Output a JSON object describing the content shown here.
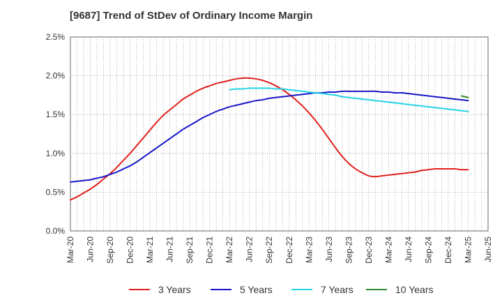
{
  "chart": {
    "title": "[9687]  Trend of StDev of Ordinary Income Margin"
  },
  "chart_data": {
    "type": "line",
    "title": "[9687]  Trend of StDev of Ordinary Income Margin",
    "xlabel": "",
    "ylabel": "",
    "x_ticks": [
      "Mar-20",
      "Jun-20",
      "Sep-20",
      "Dec-20",
      "Mar-21",
      "Jun-21",
      "Sep-21",
      "Dec-21",
      "Mar-22",
      "Jun-22",
      "Sep-22",
      "Dec-22",
      "Mar-23",
      "Jun-23",
      "Sep-23",
      "Dec-23",
      "Mar-24",
      "Jun-24",
      "Sep-24",
      "Dec-24",
      "Mar-25",
      "Jun-25"
    ],
    "y_ticks": [
      "0.0%",
      "0.5%",
      "1.0%",
      "1.5%",
      "2.0%",
      "2.5%"
    ],
    "ylim": [
      0,
      2.5
    ],
    "y_unit": "%",
    "grid": true,
    "legend_position": "bottom",
    "series": [
      {
        "name": "3 Years",
        "color": "#e0201c",
        "x": [
          "Mar-20",
          "Apr-20",
          "May-20",
          "Jun-20",
          "Jul-20",
          "Aug-20",
          "Sep-20",
          "Oct-20",
          "Nov-20",
          "Dec-20",
          "Jan-21",
          "Feb-21",
          "Mar-21",
          "Apr-21",
          "May-21",
          "Jun-21",
          "Jul-21",
          "Aug-21",
          "Sep-21",
          "Oct-21",
          "Nov-21",
          "Dec-21",
          "Jan-22",
          "Feb-22",
          "Mar-22",
          "Apr-22",
          "May-22",
          "Jun-22",
          "Jul-22",
          "Aug-22",
          "Sep-22",
          "Oct-22",
          "Nov-22",
          "Dec-22",
          "Jan-23",
          "Feb-23",
          "Mar-23",
          "Apr-23",
          "May-23",
          "Jun-23",
          "Jul-23",
          "Aug-23",
          "Sep-23",
          "Oct-23",
          "Nov-23",
          "Dec-23",
          "Jan-24",
          "Feb-24",
          "Mar-24",
          "Apr-24",
          "May-24",
          "Jun-24",
          "Jul-24",
          "Aug-24",
          "Sep-24",
          "Oct-24",
          "Nov-24",
          "Dec-24",
          "Jan-25",
          "Feb-25",
          "Mar-25"
        ],
        "values": [
          0.4,
          0.44,
          0.49,
          0.54,
          0.6,
          0.67,
          0.74,
          0.82,
          0.91,
          1.0,
          1.1,
          1.2,
          1.3,
          1.4,
          1.49,
          1.56,
          1.63,
          1.7,
          1.75,
          1.8,
          1.84,
          1.87,
          1.9,
          1.92,
          1.94,
          1.96,
          1.97,
          1.97,
          1.96,
          1.94,
          1.91,
          1.87,
          1.82,
          1.76,
          1.69,
          1.61,
          1.52,
          1.42,
          1.31,
          1.19,
          1.07,
          0.96,
          0.87,
          0.8,
          0.75,
          0.71,
          0.7,
          0.71,
          0.72,
          0.73,
          0.74,
          0.75,
          0.76,
          0.78,
          0.79,
          0.8,
          0.8,
          0.8,
          0.8,
          0.79,
          0.79
        ]
      },
      {
        "name": "5 Years",
        "color": "#1515c8",
        "x": [
          "Mar-20",
          "Apr-20",
          "May-20",
          "Jun-20",
          "Jul-20",
          "Aug-20",
          "Sep-20",
          "Oct-20",
          "Nov-20",
          "Dec-20",
          "Jan-21",
          "Feb-21",
          "Mar-21",
          "Apr-21",
          "May-21",
          "Jun-21",
          "Jul-21",
          "Aug-21",
          "Sep-21",
          "Oct-21",
          "Nov-21",
          "Dec-21",
          "Jan-22",
          "Feb-22",
          "Mar-22",
          "Apr-22",
          "May-22",
          "Jun-22",
          "Jul-22",
          "Aug-22",
          "Sep-22",
          "Oct-22",
          "Nov-22",
          "Dec-22",
          "Jan-23",
          "Feb-23",
          "Mar-23",
          "Apr-23",
          "May-23",
          "Jun-23",
          "Jul-23",
          "Aug-23",
          "Sep-23",
          "Oct-23",
          "Nov-23",
          "Dec-23",
          "Jan-24",
          "Feb-24",
          "Mar-24",
          "Apr-24",
          "May-24",
          "Jun-24",
          "Jul-24",
          "Aug-24",
          "Sep-24",
          "Oct-24",
          "Nov-24",
          "Dec-24",
          "Jan-25",
          "Feb-25",
          "Mar-25"
        ],
        "values": [
          0.63,
          0.64,
          0.65,
          0.66,
          0.68,
          0.7,
          0.73,
          0.76,
          0.8,
          0.84,
          0.89,
          0.95,
          1.01,
          1.07,
          1.13,
          1.19,
          1.25,
          1.31,
          1.36,
          1.41,
          1.46,
          1.5,
          1.54,
          1.57,
          1.6,
          1.62,
          1.64,
          1.66,
          1.68,
          1.69,
          1.71,
          1.72,
          1.73,
          1.74,
          1.75,
          1.76,
          1.77,
          1.78,
          1.78,
          1.79,
          1.79,
          1.8,
          1.8,
          1.8,
          1.8,
          1.8,
          1.8,
          1.79,
          1.79,
          1.78,
          1.78,
          1.77,
          1.76,
          1.75,
          1.74,
          1.73,
          1.72,
          1.71,
          1.7,
          1.69,
          1.68
        ]
      },
      {
        "name": "7 Years",
        "color": "#22d3e6",
        "x": [
          "Mar-22",
          "Apr-22",
          "May-22",
          "Jun-22",
          "Jul-22",
          "Aug-22",
          "Sep-22",
          "Oct-22",
          "Nov-22",
          "Dec-22",
          "Jan-23",
          "Feb-23",
          "Mar-23",
          "Apr-23",
          "May-23",
          "Jun-23",
          "Jul-23",
          "Aug-23",
          "Sep-23",
          "Oct-23",
          "Nov-23",
          "Dec-23",
          "Jan-24",
          "Feb-24",
          "Mar-24",
          "Apr-24",
          "May-24",
          "Jun-24",
          "Jul-24",
          "Aug-24",
          "Sep-24",
          "Oct-24",
          "Nov-24",
          "Dec-24",
          "Jan-25",
          "Feb-25",
          "Mar-25"
        ],
        "values": [
          1.82,
          1.83,
          1.83,
          1.84,
          1.84,
          1.84,
          1.84,
          1.83,
          1.83,
          1.82,
          1.81,
          1.8,
          1.79,
          1.78,
          1.77,
          1.76,
          1.75,
          1.73,
          1.72,
          1.71,
          1.7,
          1.69,
          1.68,
          1.67,
          1.66,
          1.65,
          1.64,
          1.63,
          1.62,
          1.61,
          1.6,
          1.59,
          1.58,
          1.57,
          1.56,
          1.55,
          1.54
        ]
      },
      {
        "name": "10 Years",
        "color": "#2a8a2a",
        "x": [
          "Feb-25",
          "Mar-25"
        ],
        "values": [
          1.74,
          1.72
        ]
      }
    ]
  }
}
